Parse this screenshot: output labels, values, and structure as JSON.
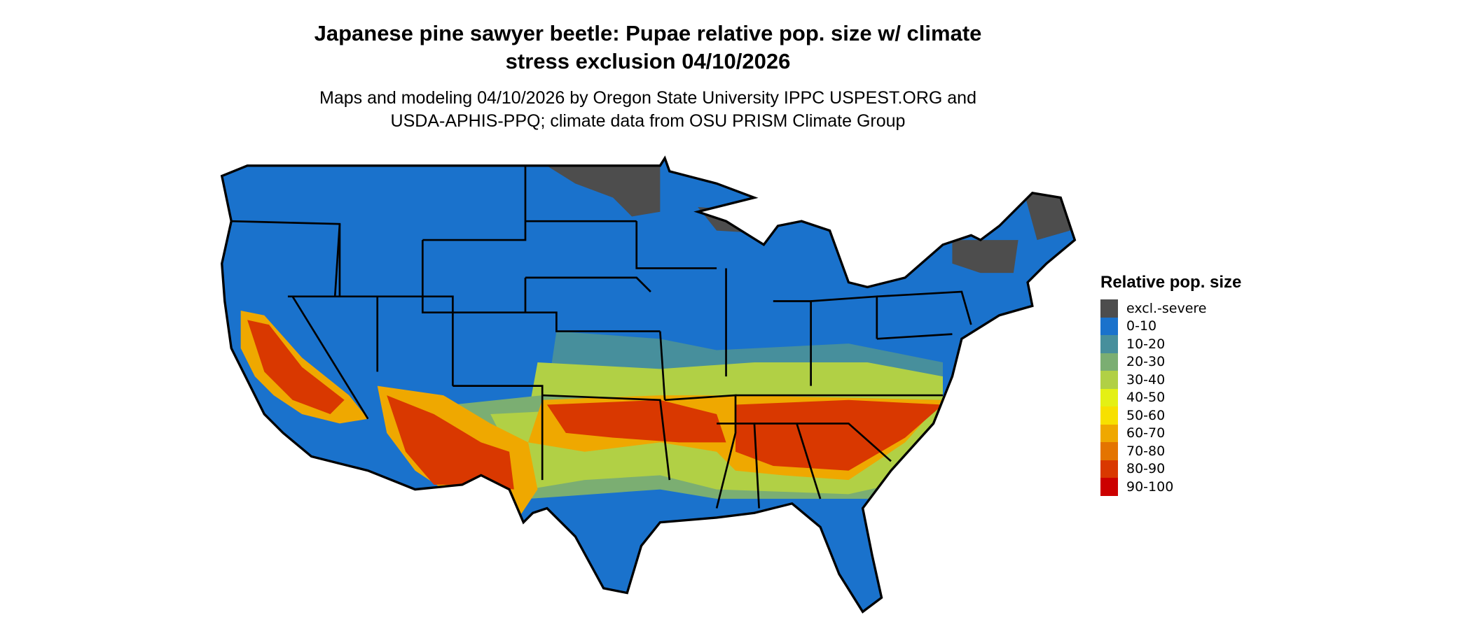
{
  "title": {
    "line1": "Japanese pine sawyer beetle: Pupae relative pop. size w/ climate",
    "line2": "stress exclusion 04/10/2026"
  },
  "subtitle": {
    "line1": "Maps and modeling 04/10/2026 by Oregon State University IPPC USPEST.ORG and",
    "line2": "USDA-APHIS-PPQ; climate data from OSU PRISM Climate Group"
  },
  "legend": {
    "title": "Relative pop. size",
    "items": [
      {
        "label": "excl.-severe",
        "color": "#4d4d4d"
      },
      {
        "label": "0-10",
        "color": "#1a72cc"
      },
      {
        "label": "10-20",
        "color": "#478f9c"
      },
      {
        "label": "20-30",
        "color": "#7bae72"
      },
      {
        "label": "30-40",
        "color": "#b1d045"
      },
      {
        "label": "40-50",
        "color": "#e4f014"
      },
      {
        "label": "50-60",
        "color": "#f7e000"
      },
      {
        "label": "60-70",
        "color": "#efa800"
      },
      {
        "label": "70-80",
        "color": "#e47400"
      },
      {
        "label": "80-90",
        "color": "#d93800"
      },
      {
        "label": "90-100",
        "color": "#cc0000"
      }
    ]
  }
}
